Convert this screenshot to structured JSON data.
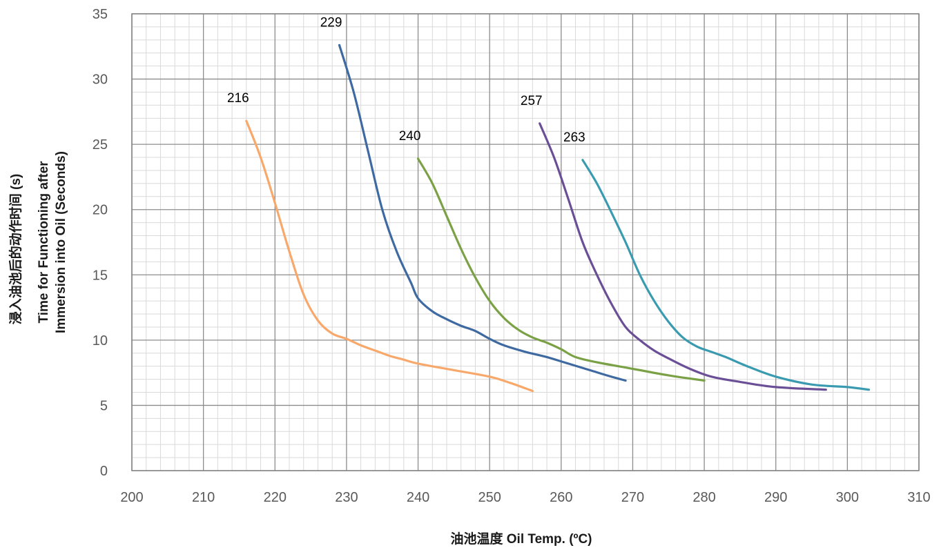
{
  "chart_data": {
    "type": "line",
    "title": "",
    "xlabel": "油池温度 Oil Temp. (ºC)",
    "ylabel_lines": [
      "浸入油池后的动作时间 (s)",
      "Time for Functioning after",
      "Immersion into Oil (Seconds)"
    ],
    "xlim": [
      200,
      310
    ],
    "ylim": [
      0,
      35
    ],
    "x_ticks": [
      "200",
      "210",
      "220",
      "230",
      "240",
      "250",
      "260",
      "270",
      "280",
      "290",
      "300",
      "310"
    ],
    "y_ticks": [
      "0",
      "5",
      "10",
      "15",
      "20",
      "25",
      "30",
      "35"
    ],
    "grid": true,
    "minor_grid": true,
    "series": [
      {
        "name": "216",
        "color": "#F8A86A",
        "points": [
          [
            216,
            26.8
          ],
          [
            218,
            24
          ],
          [
            220,
            20.5
          ],
          [
            222,
            16.8
          ],
          [
            224,
            13.5
          ],
          [
            226,
            11.5
          ],
          [
            228,
            10.5
          ],
          [
            230,
            10.1
          ],
          [
            232,
            9.6
          ],
          [
            234,
            9.2
          ],
          [
            236,
            8.8
          ],
          [
            238,
            8.5
          ],
          [
            240,
            8.2
          ],
          [
            245,
            7.7
          ],
          [
            250,
            7.2
          ],
          [
            253,
            6.7
          ],
          [
            256,
            6.1
          ]
        ]
      },
      {
        "name": "229",
        "color": "#3E6AA1",
        "points": [
          [
            229,
            32.6
          ],
          [
            231,
            29
          ],
          [
            233,
            24.5
          ],
          [
            235,
            20
          ],
          [
            237,
            16.8
          ],
          [
            239,
            14.4
          ],
          [
            240,
            13.2
          ],
          [
            242,
            12.2
          ],
          [
            244,
            11.6
          ],
          [
            246,
            11.1
          ],
          [
            248,
            10.7
          ],
          [
            250,
            10.1
          ],
          [
            252,
            9.6
          ],
          [
            255,
            9.1
          ],
          [
            258,
            8.7
          ],
          [
            261,
            8.2
          ],
          [
            264,
            7.7
          ],
          [
            267,
            7.2
          ],
          [
            269,
            6.9
          ]
        ]
      },
      {
        "name": "240",
        "color": "#7BA146",
        "points": [
          [
            240,
            23.9
          ],
          [
            242,
            22
          ],
          [
            244,
            19.5
          ],
          [
            246,
            17
          ],
          [
            248,
            14.8
          ],
          [
            250,
            13
          ],
          [
            252,
            11.7
          ],
          [
            254,
            10.8
          ],
          [
            256,
            10.2
          ],
          [
            258,
            9.8
          ],
          [
            260,
            9.3
          ],
          [
            262,
            8.7
          ],
          [
            265,
            8.3
          ],
          [
            270,
            7.8
          ],
          [
            275,
            7.3
          ],
          [
            280,
            6.9
          ]
        ]
      },
      {
        "name": "257",
        "color": "#6A4F96",
        "points": [
          [
            257,
            26.6
          ],
          [
            259,
            24
          ],
          [
            261,
            20.8
          ],
          [
            263,
            17.5
          ],
          [
            265,
            15
          ],
          [
            267,
            12.8
          ],
          [
            269,
            11
          ],
          [
            271,
            10
          ],
          [
            273,
            9.2
          ],
          [
            275,
            8.6
          ],
          [
            278,
            7.8
          ],
          [
            281,
            7.2
          ],
          [
            285,
            6.8
          ],
          [
            290,
            6.4
          ],
          [
            297,
            6.2
          ]
        ]
      },
      {
        "name": "263",
        "color": "#3A9BB0",
        "points": [
          [
            263,
            23.8
          ],
          [
            265,
            22
          ],
          [
            267,
            19.8
          ],
          [
            269,
            17.5
          ],
          [
            271,
            15
          ],
          [
            273,
            13
          ],
          [
            275,
            11.4
          ],
          [
            277,
            10.2
          ],
          [
            279,
            9.5
          ],
          [
            281,
            9.1
          ],
          [
            283,
            8.7
          ],
          [
            286,
            8
          ],
          [
            290,
            7.2
          ],
          [
            295,
            6.6
          ],
          [
            300,
            6.4
          ],
          [
            303,
            6.2
          ]
        ]
      }
    ]
  }
}
